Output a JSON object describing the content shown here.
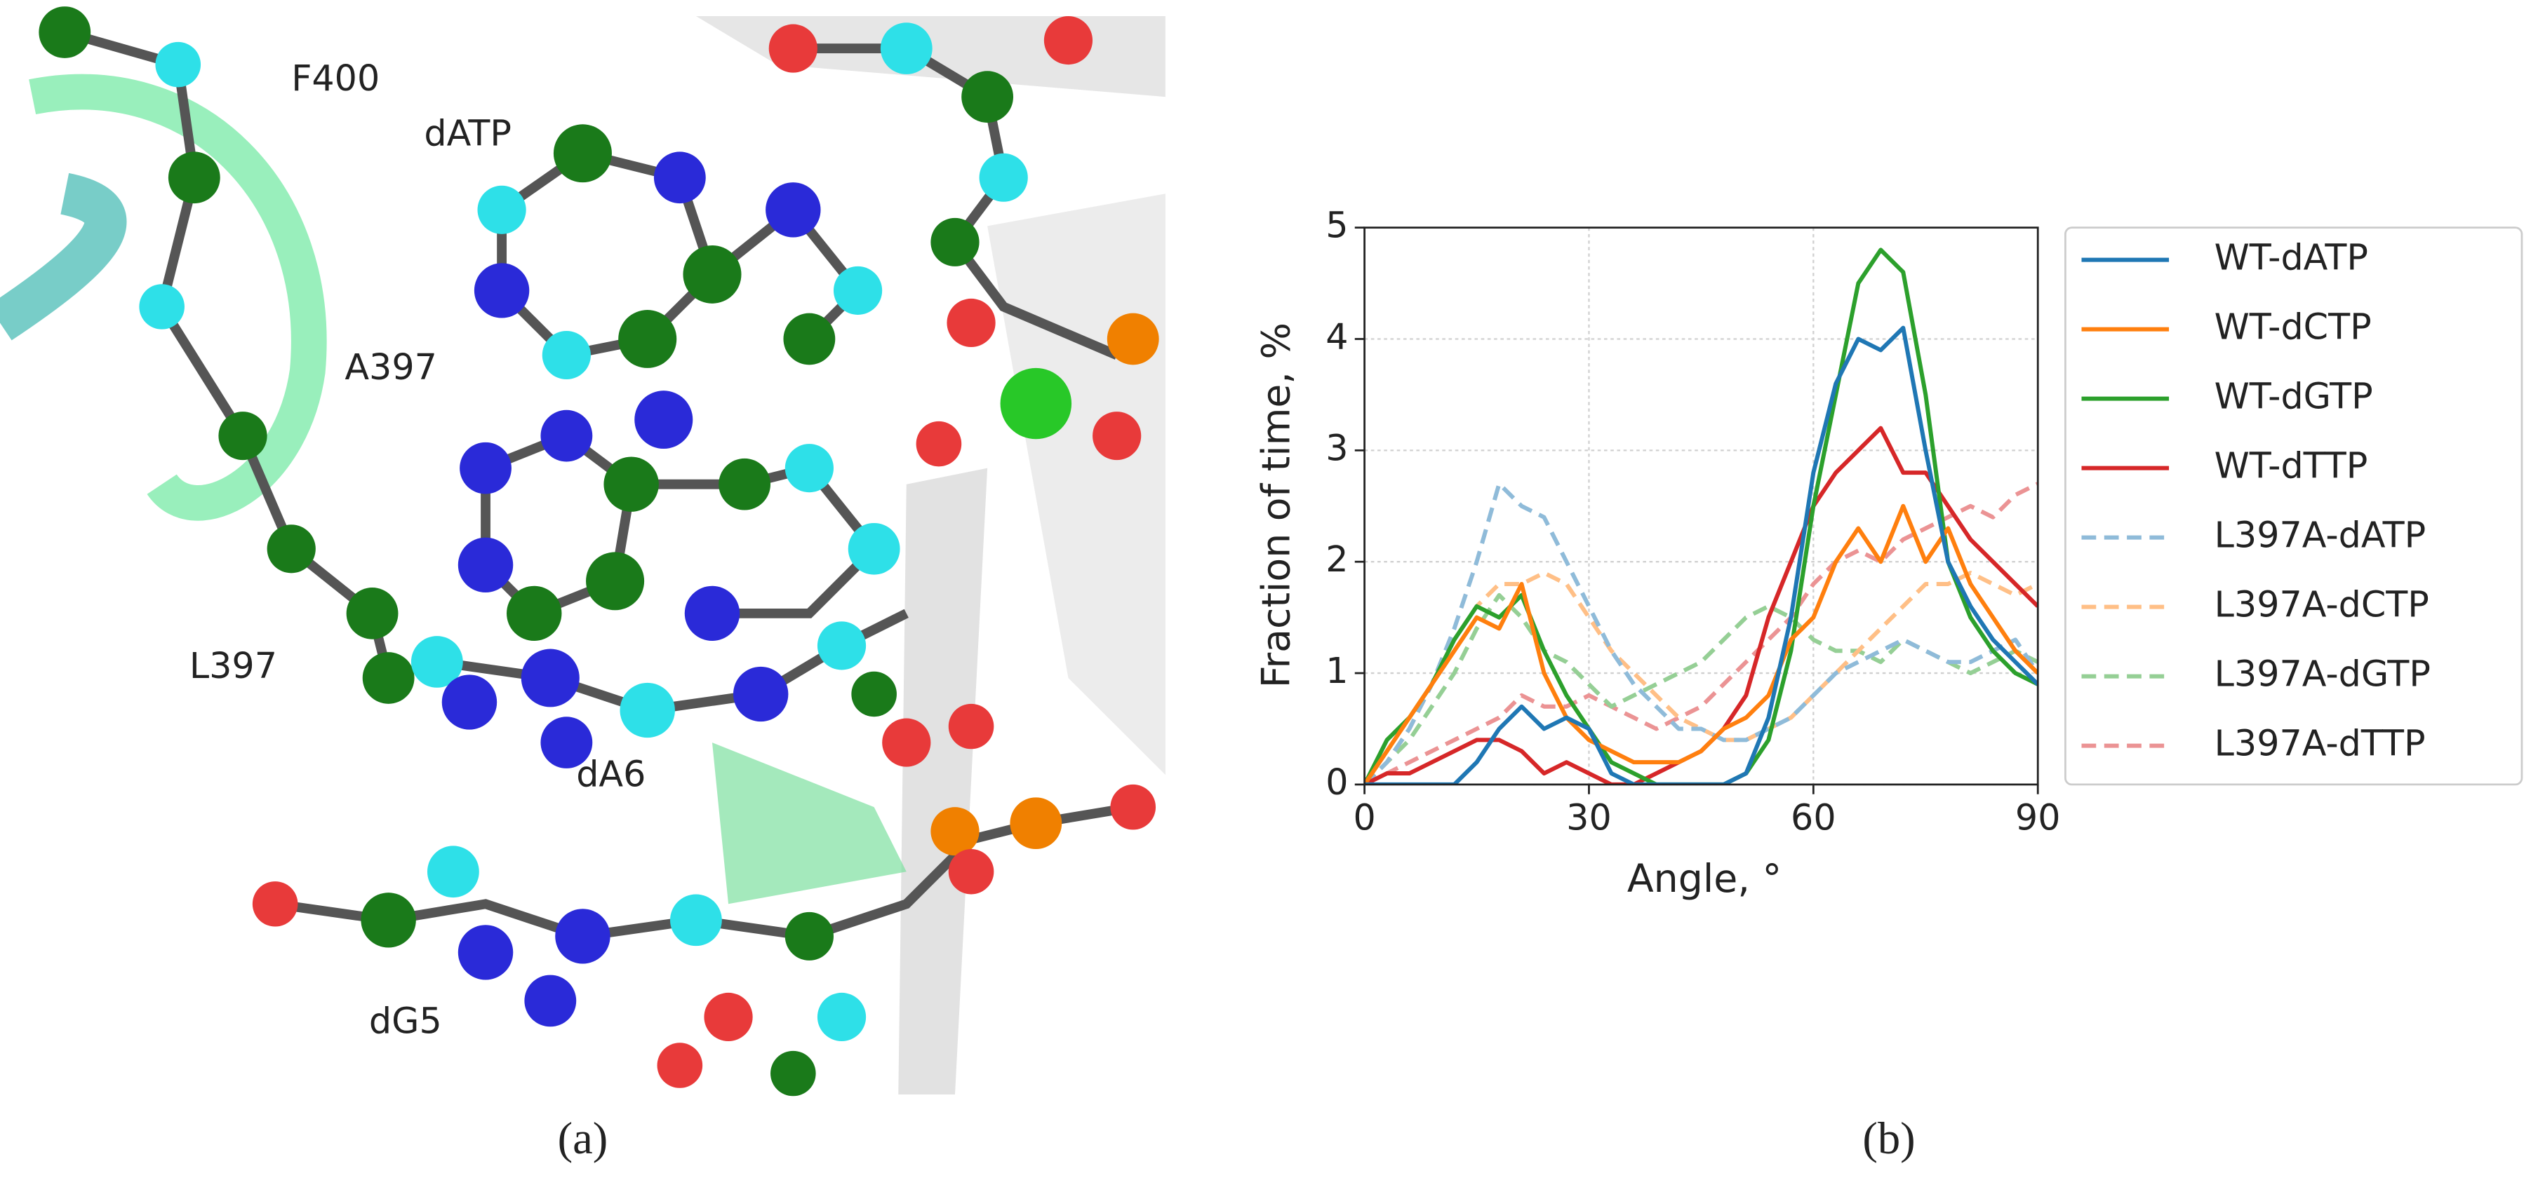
{
  "figure": {
    "panel_a": {
      "label": "(a)",
      "annotations": [
        "F400",
        "dATP",
        "A397",
        "L397",
        "dA6",
        "dG5"
      ]
    },
    "panel_b": {
      "label": "(b)"
    }
  },
  "chart_data": {
    "type": "line",
    "xlabel": "Angle, °",
    "ylabel": "Fraction of time, %",
    "xlim": [
      0,
      90
    ],
    "xticks": [
      0,
      30,
      60,
      90
    ],
    "ylim": [
      0,
      5
    ],
    "yticks": [
      0,
      1,
      2,
      3,
      4,
      5
    ],
    "grid": true,
    "legend": "outside right",
    "x": [
      0,
      3,
      6,
      9,
      12,
      15,
      18,
      21,
      24,
      27,
      30,
      33,
      36,
      39,
      42,
      45,
      48,
      51,
      54,
      57,
      60,
      63,
      66,
      69,
      72,
      75,
      78,
      81,
      84,
      87,
      90
    ],
    "series": [
      {
        "name": "WT-dATP",
        "color": "#1f77b4",
        "linestyle": "solid",
        "values": [
          0,
          0,
          0,
          0,
          0,
          0.2,
          0.5,
          0.7,
          0.5,
          0.6,
          0.5,
          0.1,
          0,
          0,
          0,
          0,
          0,
          0.1,
          0.6,
          1.5,
          2.8,
          3.6,
          4.0,
          3.9,
          4.1,
          3.0,
          2.0,
          1.6,
          1.3,
          1.1,
          0.9
        ]
      },
      {
        "name": "WT-dCTP",
        "color": "#ff7f0e",
        "linestyle": "solid",
        "values": [
          0,
          0.3,
          0.6,
          0.9,
          1.2,
          1.5,
          1.4,
          1.8,
          1.0,
          0.6,
          0.4,
          0.3,
          0.2,
          0.2,
          0.2,
          0.3,
          0.5,
          0.6,
          0.8,
          1.3,
          1.5,
          2.0,
          2.3,
          2.0,
          2.5,
          2.0,
          2.3,
          1.8,
          1.5,
          1.2,
          1.0
        ]
      },
      {
        "name": "WT-dGTP",
        "color": "#2ca02c",
        "linestyle": "solid",
        "values": [
          0,
          0.4,
          0.6,
          0.9,
          1.3,
          1.6,
          1.5,
          1.7,
          1.2,
          0.8,
          0.5,
          0.2,
          0.1,
          0,
          0,
          0,
          0,
          0.1,
          0.4,
          1.2,
          2.5,
          3.5,
          4.5,
          4.8,
          4.6,
          3.5,
          2.0,
          1.5,
          1.2,
          1.0,
          0.9
        ]
      },
      {
        "name": "WT-dTTP",
        "color": "#d62728",
        "linestyle": "solid",
        "values": [
          0,
          0.1,
          0.1,
          0.2,
          0.3,
          0.4,
          0.4,
          0.3,
          0.1,
          0.2,
          0.1,
          0,
          0,
          0.1,
          0.2,
          0.3,
          0.5,
          0.8,
          1.5,
          2.0,
          2.5,
          2.8,
          3.0,
          3.2,
          2.8,
          2.8,
          2.5,
          2.2,
          2.0,
          1.8,
          1.6
        ]
      },
      {
        "name": "L397A-dATP",
        "color": "#8fbbd9",
        "linestyle": "dashed",
        "values": [
          0,
          0.2,
          0.5,
          0.9,
          1.4,
          2.0,
          2.7,
          2.5,
          2.4,
          2.0,
          1.6,
          1.2,
          0.9,
          0.7,
          0.5,
          0.5,
          0.4,
          0.4,
          0.5,
          0.6,
          0.8,
          1.0,
          1.1,
          1.2,
          1.3,
          1.2,
          1.1,
          1.1,
          1.2,
          1.3,
          1.0
        ]
      },
      {
        "name": "L397A-dCTP",
        "color": "#ffbf86",
        "linestyle": "dashed",
        "values": [
          0,
          0.2,
          0.5,
          0.9,
          1.3,
          1.6,
          1.8,
          1.8,
          1.9,
          1.8,
          1.5,
          1.2,
          1.0,
          0.8,
          0.6,
          0.5,
          0.4,
          0.4,
          0.5,
          0.6,
          0.8,
          1.0,
          1.2,
          1.4,
          1.6,
          1.8,
          1.8,
          1.9,
          1.8,
          1.7,
          1.8
        ]
      },
      {
        "name": "L397A-dGTP",
        "color": "#95cf95",
        "linestyle": "dashed",
        "values": [
          0,
          0.2,
          0.4,
          0.7,
          1.0,
          1.4,
          1.7,
          1.5,
          1.2,
          1.1,
          0.9,
          0.7,
          0.8,
          0.9,
          1.0,
          1.1,
          1.3,
          1.5,
          1.6,
          1.5,
          1.3,
          1.2,
          1.2,
          1.1,
          1.3,
          1.2,
          1.1,
          1.0,
          1.1,
          1.2,
          1.1
        ]
      },
      {
        "name": "L397A-dTTP",
        "color": "#eb9394",
        "linestyle": "dashed",
        "values": [
          0,
          0.1,
          0.2,
          0.3,
          0.4,
          0.5,
          0.6,
          0.8,
          0.7,
          0.7,
          0.8,
          0.7,
          0.6,
          0.5,
          0.6,
          0.7,
          0.9,
          1.1,
          1.3,
          1.5,
          1.8,
          2.0,
          2.1,
          2.0,
          2.2,
          2.3,
          2.4,
          2.5,
          2.4,
          2.6,
          2.7
        ]
      }
    ]
  }
}
